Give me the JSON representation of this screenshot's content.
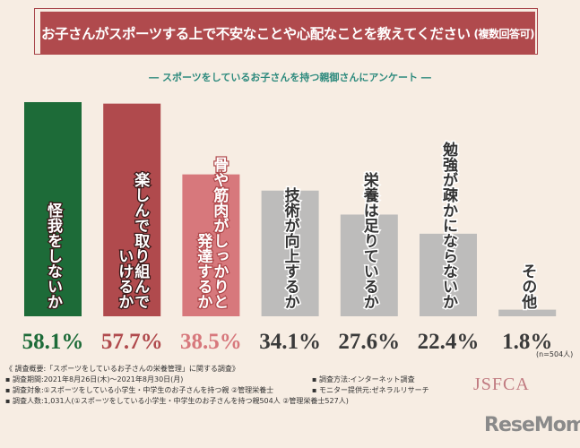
{
  "header": {
    "title": "お子さんがスポーツする上で不安なことや心配なことを教えてください",
    "title_note": "(複数回答可)",
    "subtitle": "― スポーツをしているお子さんを持つ親御さんにアンケート ―"
  },
  "chart_data": {
    "type": "bar",
    "categories": [
      [
        "怪我をしないか"
      ],
      [
        "楽しんで取り組んで",
        "いけるか"
      ],
      [
        "骨や筋肉がしっかりと",
        "発達するか"
      ],
      [
        "技術が向上するか"
      ],
      [
        "栄養は足りているか"
      ],
      [
        "勉強が疎かにならないか"
      ],
      [
        "その他"
      ]
    ],
    "values": [
      58.1,
      57.7,
      38.5,
      34.1,
      27.6,
      22.4,
      1.8
    ],
    "value_labels": [
      "58.1%",
      "57.7%",
      "38.5%",
      "34.1%",
      "27.6%",
      "22.4%",
      "1.8%"
    ],
    "colors": [
      "#1d6b38",
      "#b04a4d",
      "#d7787c",
      "#bdbcbb",
      "#bdbcbb",
      "#bdbcbb",
      "#bdbcbb"
    ],
    "value_colors": [
      "#1d6b38",
      "#b04a4d",
      "#d7787c",
      "#3a3a3a",
      "#3a3a3a",
      "#3a3a3a",
      "#3a3a3a"
    ],
    "ylim": [
      0,
      60
    ],
    "note": "(n=504人)"
  },
  "footer": {
    "lines": [
      "《 調査概要:「スポーツをしているお子さんの栄養管理」に関する調査》",
      "▪ 調査期間:2021年8月26日(木)～2021年8月30日(月)",
      "▪ 調査対象:①スポーツをしている小学生・中学生のお子さんを持つ親 ②管理栄養士",
      "▪ 調査人数:1,031人(①スポーツをしている小学生・中学生のお子さんを持つ親504人 ②管理栄養士527人)"
    ],
    "col2": [
      "▪ 調査方法:インターネット調査",
      "▪ モニター提供元:ゼネラルリサーチ"
    ],
    "logo": "JSFCA",
    "brand": "ReseMom"
  }
}
